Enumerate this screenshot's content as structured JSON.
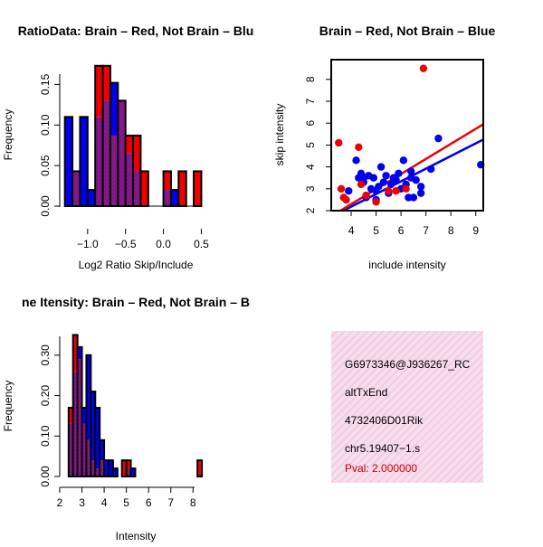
{
  "colors": {
    "brain": "#ee0000",
    "not_brain": "#0000ee",
    "overlap": "#8b1a8b",
    "panel_bg": "#f5d8ea",
    "pval": "#cc0000"
  },
  "chart_data": [
    {
      "type": "bar",
      "title": "RatioData: Brain – Red, Not Brain – Blu",
      "xlabel": "Log2 Ratio Skip/Include",
      "ylabel": "Frequency",
      "xlim": [
        -1.35,
        0.62
      ],
      "ylim": [
        0,
        0.175
      ],
      "xticks": [
        -1.0,
        -0.5,
        0.0,
        0.5
      ],
      "xtick_labels": [
        "−1.0",
        "−0.5",
        "0.0",
        "0.5"
      ],
      "yticks": [
        0.0,
        0.05,
        0.1,
        0.15
      ],
      "ytick_labels": [
        "0.00",
        "0.05",
        "0.10",
        "0.15"
      ],
      "bin_width": 0.1,
      "series": [
        {
          "name": "Not Brain",
          "color": "blue",
          "bins": [
            [
              -1.3,
              0.11
            ],
            [
              -1.2,
              0.043
            ],
            [
              -1.1,
              0.11
            ],
            [
              -1.0,
              0.02
            ],
            [
              -0.9,
              0.11
            ],
            [
              -0.8,
              0.13
            ],
            [
              -0.7,
              0.152
            ],
            [
              -0.6,
              0.13
            ],
            [
              -0.5,
              0.065
            ],
            [
              -0.4,
              0.043
            ],
            [
              0.0,
              0.02
            ],
            [
              0.1,
              0.02
            ]
          ]
        },
        {
          "name": "Brain",
          "color": "red",
          "bins": [
            [
              -1.2,
              0.043
            ],
            [
              -0.9,
              0.173
            ],
            [
              -0.8,
              0.173
            ],
            [
              -0.7,
              0.087
            ],
            [
              -0.6,
              0.13
            ],
            [
              -0.5,
              0.087
            ],
            [
              -0.4,
              0.087
            ],
            [
              -0.3,
              0.043
            ],
            [
              0.0,
              0.043
            ],
            [
              0.2,
              0.043
            ],
            [
              0.4,
              0.043
            ]
          ]
        }
      ]
    },
    {
      "type": "scatter",
      "title": "Brain – Red, Not Brain – Blue",
      "xlabel": "include intensity",
      "ylabel": "skip intensity",
      "xlim": [
        3.2,
        9.3
      ],
      "ylim": [
        2.0,
        8.9
      ],
      "xticks": [
        4,
        5,
        6,
        7,
        8,
        9
      ],
      "yticks": [
        2,
        3,
        4,
        5,
        6,
        7,
        8
      ],
      "series": [
        {
          "name": "Not Brain",
          "color": "blue",
          "points": [
            [
              3.9,
              2.9
            ],
            [
              4.2,
              4.3
            ],
            [
              4.3,
              3.5
            ],
            [
              4.4,
              3.7
            ],
            [
              4.5,
              3.3
            ],
            [
              4.6,
              2.6
            ],
            [
              4.7,
              3.6
            ],
            [
              4.8,
              3.0
            ],
            [
              4.9,
              3.5
            ],
            [
              5.0,
              2.5
            ],
            [
              5.1,
              3.1
            ],
            [
              5.2,
              4.0
            ],
            [
              5.3,
              3.3
            ],
            [
              5.4,
              3.6
            ],
            [
              5.5,
              2.8
            ],
            [
              5.6,
              3.2
            ],
            [
              5.7,
              3.5
            ],
            [
              5.8,
              3.4
            ],
            [
              5.9,
              3.7
            ],
            [
              6.0,
              3.0
            ],
            [
              6.1,
              4.3
            ],
            [
              6.2,
              3.2
            ],
            [
              6.3,
              2.6
            ],
            [
              6.4,
              3.8
            ],
            [
              6.5,
              2.6
            ],
            [
              6.6,
              3.4
            ],
            [
              6.8,
              3.1
            ],
            [
              7.2,
              3.9
            ],
            [
              7.5,
              5.3
            ],
            [
              9.2,
              4.1
            ],
            [
              4.5,
              3.5
            ],
            [
              5.0,
              2.9
            ],
            [
              6.4,
              3.5
            ],
            [
              6.8,
              2.8
            ]
          ],
          "fit": [
            [
              3.6,
              1.95
            ],
            [
              9.3,
              5.25
            ]
          ]
        },
        {
          "name": "Brain",
          "color": "red",
          "points": [
            [
              3.5,
              5.1
            ],
            [
              3.6,
              3.0
            ],
            [
              3.7,
              2.6
            ],
            [
              3.8,
              2.5
            ],
            [
              4.3,
              4.9
            ],
            [
              4.4,
              3.2
            ],
            [
              4.6,
              2.7
            ],
            [
              5.0,
              2.4
            ],
            [
              5.5,
              2.9
            ],
            [
              5.8,
              2.9
            ],
            [
              6.2,
              3.0
            ],
            [
              6.9,
              8.5
            ]
          ],
          "fit": [
            [
              3.5,
              1.95
            ],
            [
              9.3,
              5.95
            ]
          ]
        }
      ]
    },
    {
      "type": "bar",
      "title": "ne Itensity: Brain – Red, Not Brain – B",
      "xlabel": "Intensity",
      "ylabel": "Frequency",
      "xlim": [
        2.0,
        8.6
      ],
      "ylim": [
        0,
        0.36
      ],
      "xticks": [
        2,
        3,
        4,
        5,
        6,
        7,
        8
      ],
      "yticks": [
        0.0,
        0.1,
        0.2,
        0.3
      ],
      "ytick_labels": [
        "0.00",
        "0.10",
        "0.20",
        "0.30"
      ],
      "bin_width": 0.2,
      "series": [
        {
          "name": "Not Brain",
          "color": "blue",
          "bins": [
            [
              2.4,
              0.13
            ],
            [
              2.6,
              0.26
            ],
            [
              2.8,
              0.32
            ],
            [
              3.0,
              0.17
            ],
            [
              3.2,
              0.3
            ],
            [
              3.4,
              0.21
            ],
            [
              3.6,
              0.17
            ],
            [
              3.8,
              0.09
            ],
            [
              4.0,
              0.04
            ],
            [
              4.2,
              0.04
            ],
            [
              4.4,
              0.02
            ],
            [
              5.0,
              0.02
            ],
            [
              5.2,
              0.02
            ]
          ]
        },
        {
          "name": "Brain",
          "color": "red",
          "bins": [
            [
              2.4,
              0.17
            ],
            [
              2.6,
              0.35
            ],
            [
              2.8,
              0.29
            ],
            [
              3.0,
              0.13
            ],
            [
              3.2,
              0.09
            ],
            [
              3.4,
              0.04
            ],
            [
              3.6,
              0.02
            ],
            [
              3.8,
              0.04
            ],
            [
              4.8,
              0.04
            ],
            [
              5.0,
              0.04
            ],
            [
              8.2,
              0.04
            ]
          ]
        }
      ]
    }
  ],
  "info_panel": {
    "lines": [
      "G6973346@J936267_RC",
      "altTxEnd",
      "4732406D01Rik",
      "chr5.19407−1.s"
    ],
    "pval": "Pval: 2.000000"
  }
}
